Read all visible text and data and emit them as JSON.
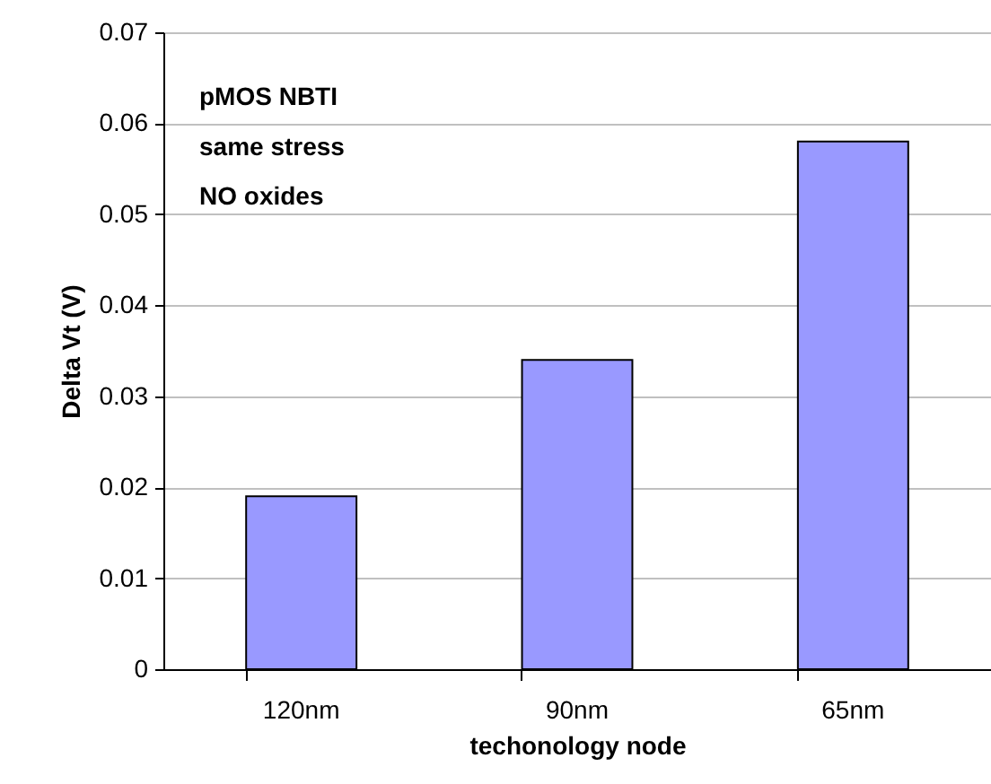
{
  "chart_data": {
    "type": "bar",
    "xlabel": "techonology node",
    "ylabel": "Delta Vt (V)",
    "categories": [
      "120nm",
      "90nm",
      "65nm"
    ],
    "values": [
      0.019,
      0.034,
      0.058
    ],
    "color": "#9999ff",
    "ylim": [
      0,
      0.07
    ],
    "yticks": [
      0,
      0.01,
      0.02,
      0.03,
      0.04,
      0.05,
      0.06,
      0.07
    ],
    "grid": "y",
    "annotations": [
      "pMOS NBTI",
      "same stress",
      "NO oxides"
    ]
  }
}
